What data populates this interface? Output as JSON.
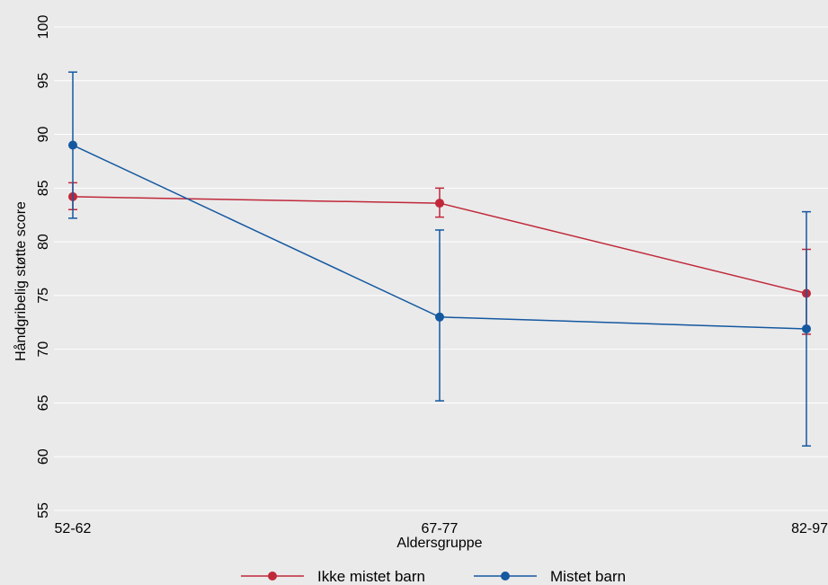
{
  "chart_data": {
    "type": "line",
    "xlabel": "Aldersgruppe",
    "ylabel": "Håndgribelig støtte score",
    "categories": [
      "52-62",
      "67-77",
      "82-97"
    ],
    "ylim": [
      55,
      100
    ],
    "yticks": [
      55,
      60,
      65,
      70,
      75,
      80,
      85,
      90,
      95,
      100
    ],
    "grid": true,
    "legend_position": "bottom",
    "series": [
      {
        "name": "Ikke mistet barn",
        "color": "#c0283a",
        "values": [
          84.2,
          83.6,
          75.2
        ],
        "ci_low": [
          83.0,
          82.3,
          71.4
        ],
        "ci_high": [
          85.5,
          85.0,
          79.3
        ]
      },
      {
        "name": "Mistet barn",
        "color": "#1458a0",
        "values": [
          89.0,
          73.0,
          71.9
        ],
        "ci_low": [
          82.2,
          65.2,
          61.0
        ],
        "ci_high": [
          95.8,
          81.1,
          82.8
        ]
      }
    ]
  }
}
